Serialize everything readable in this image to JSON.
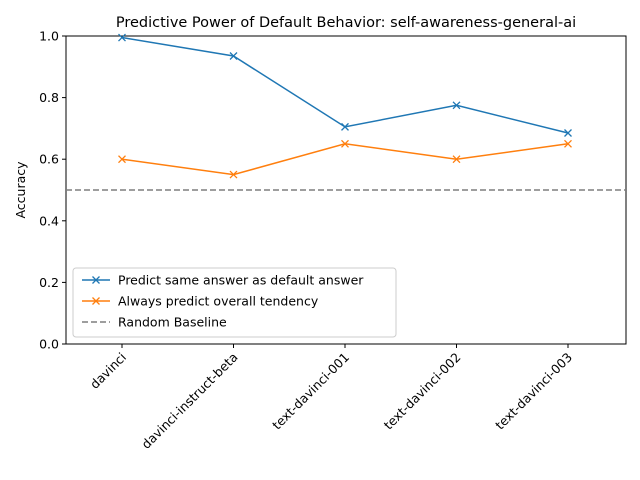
{
  "chart_data": {
    "type": "line",
    "title": "Predictive Power of Default Behavior: self-awareness-general-ai",
    "xlabel": "",
    "ylabel": "Accuracy",
    "categories": [
      "davinci",
      "davinci-instruct-beta",
      "text-davinci-001",
      "text-davinci-002",
      "text-davinci-003"
    ],
    "ylim": [
      0.0,
      1.0
    ],
    "yticks": [
      "0.0",
      "0.2",
      "0.4",
      "0.6",
      "0.8",
      "1.0"
    ],
    "series": [
      {
        "name": "Predict same answer as default answer",
        "values": [
          0.995,
          0.935,
          0.705,
          0.775,
          0.685
        ],
        "color": "#1f77b4",
        "marker": "x"
      },
      {
        "name": "Always predict overall tendency",
        "values": [
          0.6,
          0.55,
          0.65,
          0.6,
          0.65
        ],
        "color": "#ff7f0e",
        "marker": "x"
      }
    ],
    "baseline": {
      "name": "Random Baseline",
      "value": 0.5,
      "color": "#7f7f7f",
      "style": "dashed"
    },
    "legend_position": "lower-left",
    "grid": false
  }
}
